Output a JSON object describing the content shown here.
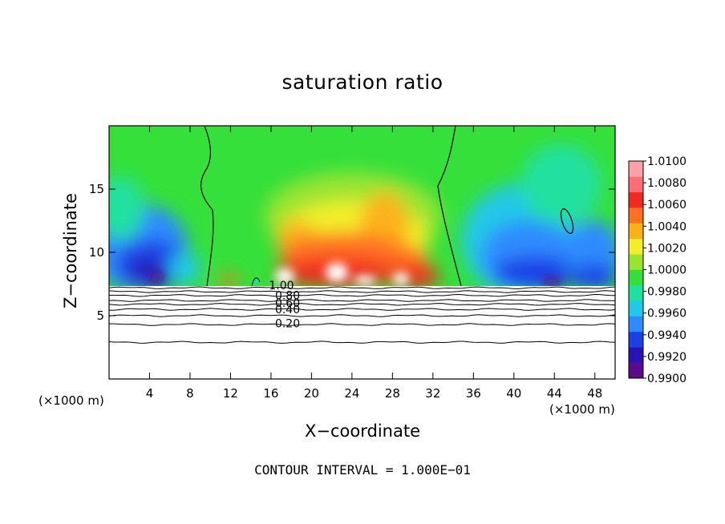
{
  "title": "saturation ratio",
  "xlabel": "X−coordinate",
  "ylabel": "Z−coordinate",
  "x_unit_left": "(×1000 m)",
  "x_unit_right": "(×1000 m)",
  "footnote": "CONTOUR INTERVAL = 1.000E−01",
  "chart_data": {
    "type": "heatmap",
    "title": "saturation ratio",
    "xlabel": "X−coordinate",
    "ylabel": "Z−coordinate",
    "x_unit": "(×1000 m)",
    "xlim": [
      0,
      50
    ],
    "ylim": [
      0,
      20
    ],
    "x_ticks": [
      4,
      8,
      12,
      16,
      20,
      24,
      28,
      32,
      36,
      40,
      44,
      48
    ],
    "y_ticks": [
      5,
      10,
      15
    ],
    "colorbar": {
      "min": 0.99,
      "max": 1.01,
      "labels": [
        "1.0100",
        "1.0080",
        "1.0060",
        "1.0040",
        "1.0020",
        "1.0000",
        "0.9980",
        "0.9960",
        "0.9940",
        "0.9920",
        "0.9900"
      ],
      "colors": [
        "#5a0a8a",
        "#2a12b4",
        "#1a40e6",
        "#2f8bff",
        "#22c8e8",
        "#20e0a0",
        "#35e03a",
        "#9ae430",
        "#f2ee2a",
        "#fbb21a",
        "#ff7020",
        "#f02a20",
        "#ff6e78",
        "#ffa0aa"
      ]
    },
    "contour_labels": [
      {
        "text": "1.00",
        "x": 15.8,
        "y": 7.4
      },
      {
        "text": "0.80",
        "x": 16.4,
        "y": 6.6
      },
      {
        "text": "0.60",
        "x": 16.4,
        "y": 6.0
      },
      {
        "text": "0.40",
        "x": 16.4,
        "y": 5.5
      },
      {
        "text": "0.20",
        "x": 16.4,
        "y": 4.4
      }
    ],
    "contour_interval": 0.1,
    "notes": "Cloud layer above z≈7.2 km: green (≈1.000) background; blue/purple subsaturated regions near x=3–8 and x=36–46; supersaturated red/orange cells near x=16–31 at z=7.5–13; white regions above colorbar max."
  }
}
